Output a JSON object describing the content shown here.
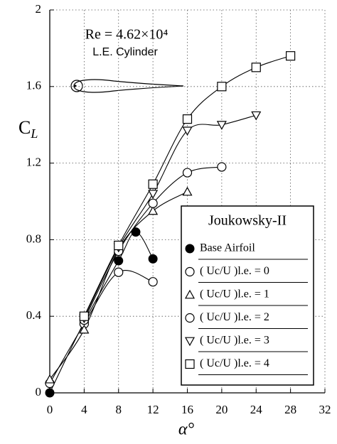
{
  "chart_data": {
    "type": "line",
    "annotations": [
      "Re = 4.62×10⁴",
      "L.E. Cylinder"
    ],
    "x_label": "α°",
    "y_label": "CL",
    "legend_title": "Joukowsky-II",
    "xlim": [
      0,
      32
    ],
    "xticks": [
      0,
      4,
      8,
      12,
      16,
      20,
      24,
      28,
      32
    ],
    "ylim": [
      0,
      2
    ],
    "yticks": [
      0,
      0.4,
      0.8,
      1.2,
      1.6,
      2
    ],
    "grid": true,
    "series": [
      {
        "name": "Base Airfoil",
        "color": "#000000",
        "marker": "filled-circle",
        "x": [
          0,
          4,
          8,
          10,
          12
        ],
        "values": [
          0,
          0.37,
          0.69,
          0.84,
          0.7
        ]
      },
      {
        "name": "( Uc/U )l.e. = 0",
        "color": "#000000",
        "marker": "circle",
        "x": [
          0,
          4,
          8,
          12
        ],
        "values": [
          0.05,
          0.36,
          0.63,
          0.58
        ]
      },
      {
        "name": "( Uc/U )l.e. = 1",
        "color": "#000000",
        "marker": "triangle",
        "x": [
          0,
          4,
          8,
          12,
          16
        ],
        "values": [
          0.07,
          0.33,
          0.75,
          0.95,
          1.05
        ]
      },
      {
        "name": "( Uc/U )l.e. = 2",
        "color": "#000000",
        "marker": "circle",
        "x": [
          4,
          8,
          12,
          16,
          20
        ],
        "values": [
          0.38,
          0.74,
          0.99,
          1.15,
          1.18
        ]
      },
      {
        "name": "( Uc/U )l.e. = 3",
        "color": "#000000",
        "marker": "inverted-triangle",
        "x": [
          4,
          8,
          12,
          16,
          20,
          24
        ],
        "values": [
          0.39,
          0.76,
          1.04,
          1.37,
          1.4,
          1.45
        ]
      },
      {
        "name": "( Uc/U )l.e. = 4",
        "color": "#000000",
        "marker": "square",
        "x": [
          4,
          8,
          12,
          16,
          20,
          24,
          28
        ],
        "values": [
          0.4,
          0.77,
          1.09,
          1.43,
          1.6,
          1.7,
          1.76
        ]
      }
    ]
  }
}
